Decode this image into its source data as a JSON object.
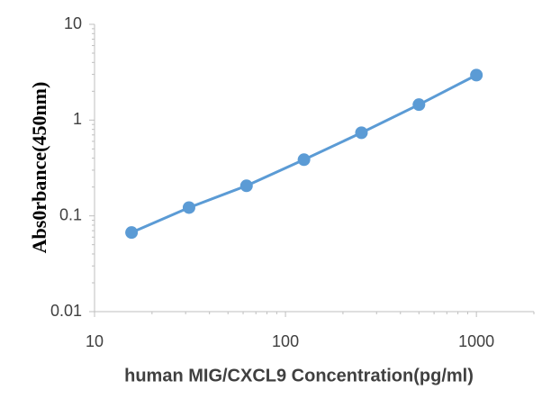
{
  "chart_data": {
    "type": "line",
    "x_label": "human MIG/CXCL9 Concentration(pg/ml)",
    "y_label": "Abs0rbance(450nm)",
    "x": [
      15.625,
      31.25,
      62.5,
      125,
      250,
      500,
      1000
    ],
    "series": [
      {
        "color": "#5b9bd5",
        "values": [
          0.067,
          0.122,
          0.206,
          0.386,
          0.738,
          1.45,
          2.95
        ]
      }
    ],
    "xscale": "log",
    "yscale": "log",
    "xlim": [
      10,
      2000
    ],
    "ylim": [
      0.01,
      10
    ],
    "xticks": [
      10,
      100,
      1000
    ],
    "yticks": [
      0.01,
      0.1,
      1,
      10
    ]
  }
}
